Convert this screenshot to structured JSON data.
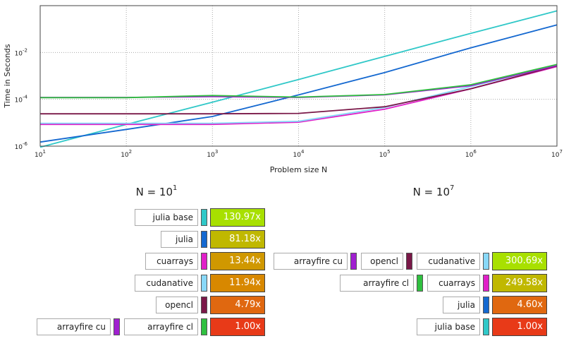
{
  "chart_data": {
    "type": "line",
    "xscale": "log",
    "yscale": "log",
    "xlabel": "Problem size N",
    "ylabel": "Time in Seconds",
    "xlim": [
      10,
      10000000
    ],
    "ylim": [
      1e-06,
      1
    ],
    "grid": true,
    "x_ticks": [
      {
        "base": "10",
        "exp": "1"
      },
      {
        "base": "10",
        "exp": "2"
      },
      {
        "base": "10",
        "exp": "3"
      },
      {
        "base": "10",
        "exp": "4"
      },
      {
        "base": "10",
        "exp": "5"
      },
      {
        "base": "10",
        "exp": "6"
      },
      {
        "base": "10",
        "exp": "7"
      }
    ],
    "y_ticks": [
      {
        "base": "10",
        "exp": "-6"
      },
      {
        "base": "10",
        "exp": "-4"
      },
      {
        "base": "10",
        "exp": "-2"
      }
    ],
    "x": [
      10,
      100,
      1000,
      10000,
      100000,
      1000000,
      10000000
    ],
    "series": [
      {
        "name": "julia base",
        "color": "#30c8c8",
        "values": [
          9e-07,
          8.5e-06,
          7.5e-05,
          0.0007,
          0.0068,
          0.066,
          0.6
        ]
      },
      {
        "name": "julia",
        "color": "#1468d0",
        "values": [
          1.5e-06,
          5.2e-06,
          1.85e-05,
          0.000155,
          0.0014,
          0.0158,
          0.15
        ]
      },
      {
        "name": "cuarrays",
        "color": "#e020c8",
        "values": [
          8.5e-06,
          8.5e-06,
          8.5e-06,
          1.05e-05,
          3.8e-05,
          0.00028,
          0.0025
        ]
      },
      {
        "name": "cudanative",
        "color": "#88d8f8",
        "values": [
          9.5e-06,
          9.5e-06,
          9.5e-06,
          1.15e-05,
          4.5e-05,
          0.00035,
          0.0029
        ]
      },
      {
        "name": "opencl",
        "color": "#7a1848",
        "values": [
          2.4e-05,
          2.4e-05,
          2.4e-05,
          2.5e-05,
          4.8e-05,
          0.00028,
          0.0027
        ]
      },
      {
        "name": "arrayfire cu",
        "color": "#a020d0",
        "values": [
          0.00012,
          0.00012,
          0.00013,
          0.00012,
          0.000155,
          0.00038,
          0.0028
        ]
      },
      {
        "name": "arrayfire cl",
        "color": "#30c040",
        "values": [
          0.000118,
          0.000118,
          0.000145,
          0.000125,
          0.00016,
          0.00042,
          0.0031
        ]
      }
    ]
  },
  "ranking_left": {
    "title": {
      "base": "N = 10",
      "exp": "1"
    },
    "rows": [
      {
        "names": [
          "julia base"
        ],
        "colors": [
          "#30c8c8"
        ],
        "score": "130.97x",
        "score_color": "#a8e000"
      },
      {
        "names": [
          "julia"
        ],
        "colors": [
          "#1468d0"
        ],
        "score": "81.18x",
        "score_color": "#c0b800"
      },
      {
        "names": [
          "cuarrays"
        ],
        "colors": [
          "#e020c8"
        ],
        "score": "13.44x",
        "score_color": "#d09800"
      },
      {
        "names": [
          "cudanative"
        ],
        "colors": [
          "#88d8f8"
        ],
        "score": "11.94x",
        "score_color": "#d88800"
      },
      {
        "names": [
          "opencl"
        ],
        "colors": [
          "#7a1848"
        ],
        "score": "4.79x",
        "score_color": "#e06810"
      },
      {
        "names": [
          "arrayfire cu",
          "arrayfire cl"
        ],
        "colors": [
          "#a020d0",
          "#30c040"
        ],
        "score": "1.00x",
        "score_color": "#e83a18"
      }
    ]
  },
  "ranking_right": {
    "title": {
      "base": "N = 10",
      "exp": "7"
    },
    "rows": [
      {
        "names": [
          "arrayfire cu",
          "opencl",
          "cudanative"
        ],
        "colors": [
          "#a020d0",
          "#7a1848",
          "#88d8f8"
        ],
        "score": "300.69x",
        "score_color": "#a8e000"
      },
      {
        "names": [
          "arrayfire cl",
          "cuarrays"
        ],
        "colors": [
          "#30c040",
          "#e020c8"
        ],
        "score": "249.58x",
        "score_color": "#c0b800"
      },
      {
        "names": [
          "julia"
        ],
        "colors": [
          "#1468d0"
        ],
        "score": "4.60x",
        "score_color": "#e06810"
      },
      {
        "names": [
          "julia base"
        ],
        "colors": [
          "#30c8c8"
        ],
        "score": "1.00x",
        "score_color": "#e83a18"
      }
    ]
  }
}
